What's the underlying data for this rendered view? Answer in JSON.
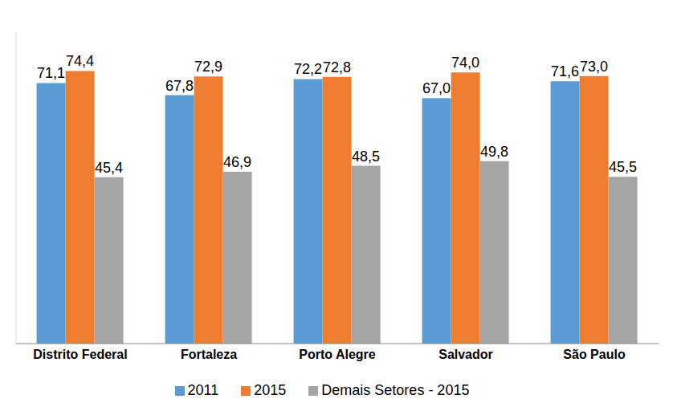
{
  "chart_data": {
    "type": "bar",
    "categories": [
      "Distrito Federal",
      "Fortaleza",
      "Porto Alegre",
      "Salvador",
      "São Paulo"
    ],
    "series": [
      {
        "name": "2011",
        "color": "#5B9BD5",
        "values": [
          71.1,
          67.8,
          72.2,
          67.0,
          71.6
        ],
        "value_labels": [
          "71,1",
          "67,8",
          "72,2",
          "67,0",
          "71,6"
        ]
      },
      {
        "name": "2015",
        "color": "#ED7D31",
        "values": [
          74.4,
          72.9,
          72.8,
          74.0,
          73.0
        ],
        "value_labels": [
          "74,4",
          "72,9",
          "72,8",
          "74,0",
          "73,0"
        ]
      },
      {
        "name": "Demais Setores - 2015",
        "color": "#A5A5A5",
        "values": [
          45.4,
          46.9,
          48.5,
          49.8,
          45.5
        ],
        "value_labels": [
          "45,4",
          "46,9",
          "48,5",
          "49,8",
          "45,5"
        ]
      }
    ],
    "ylim": [
      0,
      85
    ],
    "yticks": [],
    "tick_labels": "x",
    "data_labels": true,
    "grid": false,
    "legend": "bottom"
  }
}
